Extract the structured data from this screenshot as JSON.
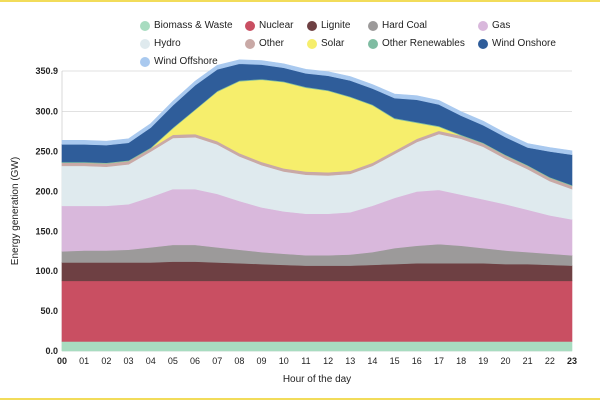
{
  "chart_data": {
    "type": "area",
    "stacked": true,
    "xlabel": "Hour of the day",
    "ylabel": "Energy generation (GW)",
    "ylim": [
      0,
      350.9
    ],
    "y_ticks": [
      "0.0",
      "50.0",
      "100.0",
      "150.0",
      "200.0",
      "250.0",
      "300.0",
      "350.9"
    ],
    "y_tick_values": [
      0,
      50,
      100,
      150,
      200,
      250,
      300,
      350.9
    ],
    "categories": [
      "00",
      "01",
      "02",
      "03",
      "04",
      "05",
      "06",
      "07",
      "08",
      "09",
      "10",
      "11",
      "12",
      "13",
      "14",
      "15",
      "16",
      "17",
      "18",
      "19",
      "20",
      "21",
      "22",
      "23"
    ],
    "series": [
      {
        "name": "Biomass & Waste",
        "color": "#a8dcc0",
        "values": [
          12,
          12,
          12,
          12,
          12,
          12,
          12,
          12,
          12,
          12,
          12,
          12,
          12,
          12,
          12,
          12,
          12,
          12,
          12,
          12,
          12,
          12,
          12,
          12
        ]
      },
      {
        "name": "Nuclear",
        "color": "#c94f62",
        "values": [
          76,
          76,
          76,
          76,
          76,
          76,
          76,
          76,
          76,
          76,
          76,
          76,
          76,
          76,
          76,
          76,
          76,
          76,
          76,
          76,
          76,
          76,
          76,
          76
        ]
      },
      {
        "name": "Lignite",
        "color": "#6e4043",
        "values": [
          23,
          23,
          23,
          23,
          23,
          24,
          24,
          23,
          22,
          21,
          20,
          19,
          19,
          19,
          20,
          21,
          22,
          22,
          22,
          22,
          21,
          21,
          20,
          19
        ]
      },
      {
        "name": "Hard Coal",
        "color": "#9c9a9a",
        "values": [
          14,
          15,
          15,
          16,
          19,
          21,
          21,
          19,
          17,
          15,
          14,
          13,
          13,
          14,
          16,
          20,
          22,
          24,
          22,
          19,
          17,
          15,
          14,
          13
        ]
      },
      {
        "name": "Gas",
        "color": "#d9b8dc",
        "values": [
          57,
          56,
          56,
          57,
          63,
          70,
          70,
          67,
          61,
          56,
          53,
          52,
          52,
          53,
          58,
          63,
          68,
          68,
          64,
          61,
          58,
          53,
          48,
          45
        ]
      },
      {
        "name": "Hydro",
        "color": "#dfeaee",
        "values": [
          50,
          50,
          49,
          50,
          57,
          64,
          65,
          62,
          56,
          53,
          50,
          49,
          48,
          48,
          50,
          55,
          62,
          70,
          70,
          66,
          57,
          51,
          43,
          38
        ]
      },
      {
        "name": "Other",
        "color": "#c9a9a6",
        "values": [
          4,
          4,
          4,
          4,
          4,
          4,
          4,
          4,
          4,
          4,
          4,
          4,
          4,
          4,
          4,
          4,
          4,
          4,
          4,
          4,
          4,
          4,
          4,
          4
        ]
      },
      {
        "name": "Solar",
        "color": "#f6ee6c",
        "values": [
          0,
          0,
          0,
          0,
          0,
          8,
          30,
          62,
          90,
          103,
          108,
          105,
          102,
          92,
          72,
          40,
          20,
          5,
          0,
          0,
          0,
          0,
          0,
          0
        ]
      },
      {
        "name": "Other Renewables",
        "color": "#7fbca2",
        "values": [
          1,
          1,
          1,
          1,
          1,
          1,
          1,
          1,
          1,
          1,
          1,
          1,
          1,
          1,
          1,
          1,
          1,
          1,
          1,
          1,
          1,
          1,
          1,
          1
        ]
      },
      {
        "name": "Wind Onshore",
        "color": "#2f5d9a",
        "values": [
          22,
          22,
          22,
          22,
          25,
          28,
          30,
          27,
          21,
          18,
          17,
          17,
          18,
          20,
          20,
          25,
          28,
          27,
          24,
          22,
          22,
          22,
          32,
          38
        ]
      },
      {
        "name": "Wind Offshore",
        "color": "#a9c9ef",
        "values": [
          5,
          5,
          5,
          5,
          5,
          5,
          5,
          5,
          5,
          5,
          5,
          5,
          5,
          5,
          5,
          5,
          5,
          5,
          5,
          5,
          5,
          5,
          5,
          5
        ]
      }
    ]
  }
}
